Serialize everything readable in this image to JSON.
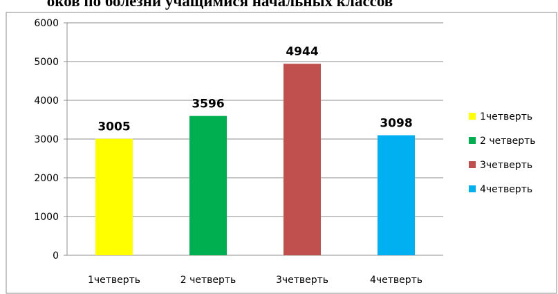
{
  "chart_data": {
    "type": "bar",
    "title": "оков по болезни учащимися начальных классов",
    "categories": [
      "1четверть",
      "2 четверть",
      "3четверть",
      "4четверть"
    ],
    "values": [
      3005,
      3596,
      4944,
      3098
    ],
    "colors": [
      "#ffff00",
      "#00b050",
      "#c0504d",
      "#00b0f0"
    ],
    "ylim": [
      0,
      6000
    ],
    "yticks": [
      0,
      1000,
      2000,
      3000,
      4000,
      5000,
      6000
    ],
    "grid": true,
    "legend": "right"
  }
}
